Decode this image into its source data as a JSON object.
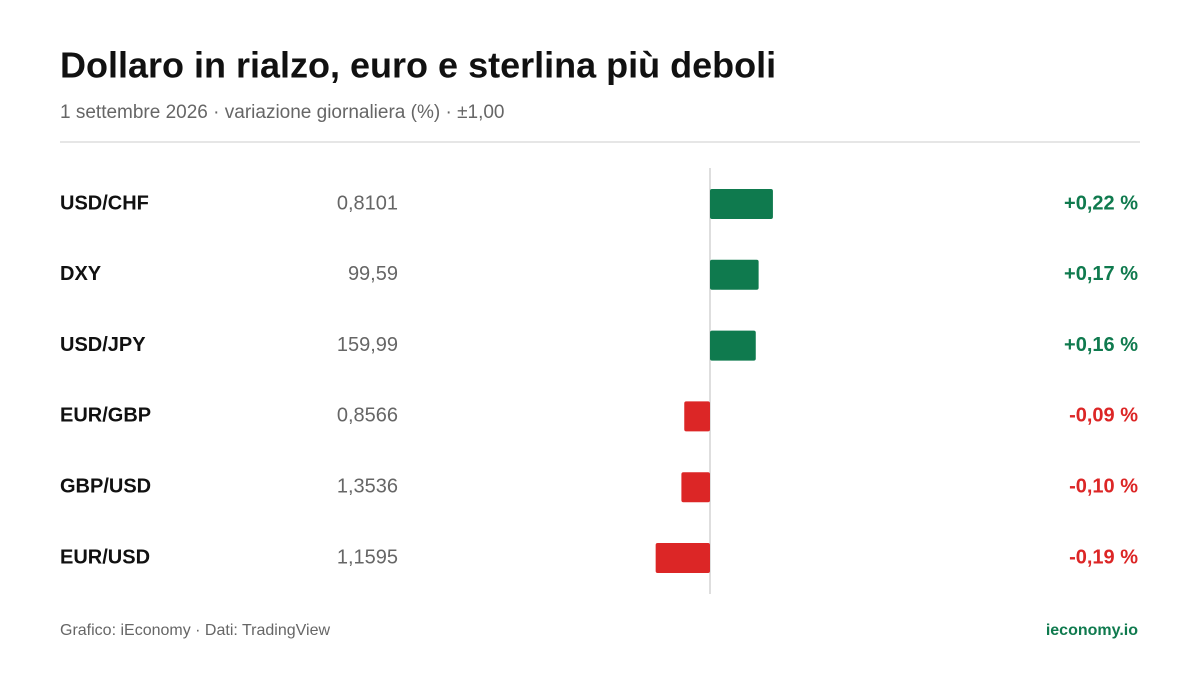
{
  "chart_data": {
    "type": "bar",
    "title": "Dollaro in rialzo, euro e sterlina più deboli",
    "subtitle": "1 settembre 2026 · variazione giornaliera (%) · ±1,00",
    "categories": [
      "USD/CHF",
      "DXY",
      "USD/JPY",
      "EUR/GBP",
      "GBP/USD",
      "EUR/USD"
    ],
    "prices": [
      "0,8101",
      "99,59",
      "159,99",
      "0,8566",
      "1,3536",
      "1,1595"
    ],
    "values": [
      0.22,
      0.17,
      0.16,
      -0.09,
      -0.1,
      -0.19
    ],
    "value_labels": [
      "+0,22 %",
      "+0,17 %",
      "+0,16 %",
      "-0,09 %",
      "-0,10 %",
      "-0,19 %"
    ],
    "xlim": [
      -1,
      1
    ],
    "positive_color": "#0f7a4e",
    "negative_color": "#dc2626",
    "source": "Grafico: iEconomy · Dati: TradingView",
    "brand": "ieconomy.io"
  }
}
